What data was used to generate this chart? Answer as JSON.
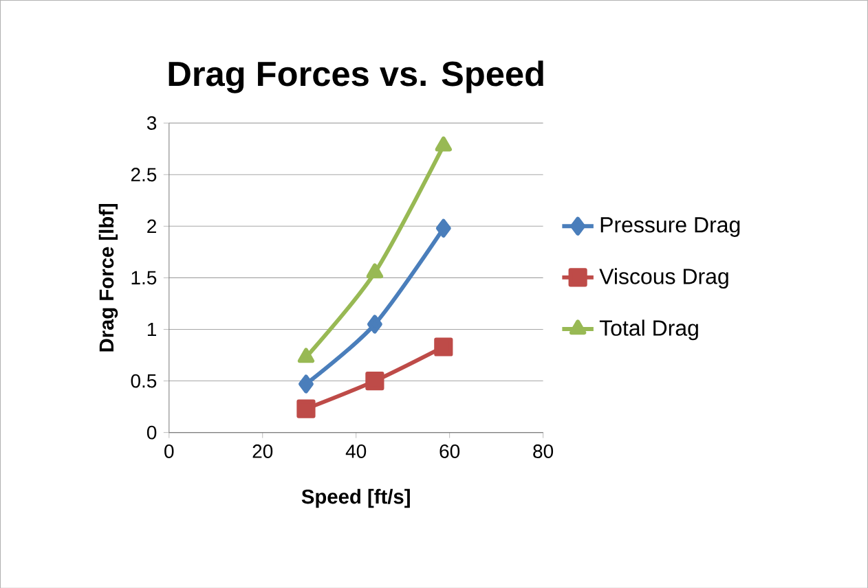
{
  "chart_data": {
    "type": "line",
    "title": "Drag Forces vs. Speed",
    "xlabel": "Speed [ft/s]",
    "ylabel": "Drag Force [lbf]",
    "xlim": [
      0,
      80
    ],
    "xticks": [
      0,
      20,
      40,
      60,
      80
    ],
    "ylim": [
      0,
      3
    ],
    "yticks": [
      0,
      0.5,
      1,
      1.5,
      2,
      2.5,
      3
    ],
    "grid": "y",
    "legend": "right",
    "line_style": "solid",
    "series": [
      {
        "name": "Pressure Drag",
        "color": "#4a7ebb",
        "marker": "diamond",
        "x": [
          29.3,
          44,
          58.7
        ],
        "values": [
          0.47,
          1.05,
          1.98
        ]
      },
      {
        "name": "Viscous Drag",
        "color": "#be4b48",
        "marker": "square",
        "x": [
          29.3,
          44,
          58.7
        ],
        "values": [
          0.23,
          0.5,
          0.83
        ]
      },
      {
        "name": "Total Drag",
        "color": "#98b954",
        "marker": "triangle",
        "x": [
          29.3,
          44,
          58.7
        ],
        "values": [
          0.73,
          1.55,
          2.78
        ]
      }
    ]
  }
}
